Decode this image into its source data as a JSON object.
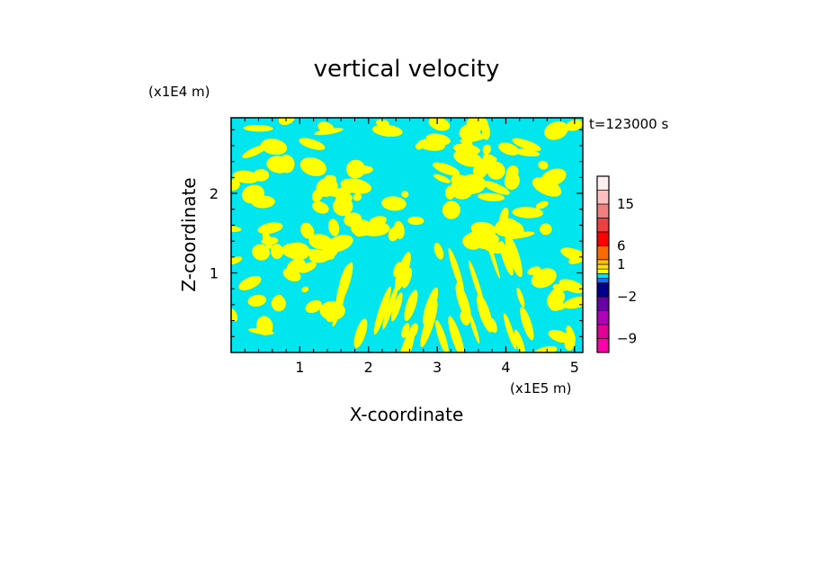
{
  "chart_data": {
    "type": "heatmap",
    "title": "vertical velocity",
    "xlabel": "X-coordinate",
    "ylabel": "Z-coordinate",
    "x_unit": "(x1E5 m)",
    "y_unit": "(x1E4 m)",
    "time_label": "t=123000 s",
    "xlim": [
      0,
      5.12
    ],
    "ylim": [
      0,
      2.95
    ],
    "xticks": [
      1,
      2,
      3,
      4,
      5
    ],
    "yticks": [
      1,
      2
    ],
    "field_colors": {
      "negative": "#00e5ee",
      "positive": "#ffff00"
    },
    "colorbar": {
      "levels": [
        -12,
        -9,
        -6,
        -4,
        -2,
        -1,
        -0.5,
        0,
        0.5,
        1,
        3,
        6,
        9,
        12,
        15,
        18,
        22
      ],
      "colors": [
        "#ff00a8",
        "#e00096",
        "#b000b8",
        "#6a00a8",
        "#00008b",
        "#1e6cff",
        "#00e5ee",
        "#ffff00",
        "#ffe000",
        "#ffc000",
        "#ff6a00",
        "#ff0000",
        "#ee4040",
        "#f08080",
        "#ffc0c0",
        "#fff0f0"
      ],
      "tick_labels": [
        "15",
        "6",
        "1",
        "−2",
        "−9"
      ],
      "tick_values": [
        15,
        6,
        1,
        -2,
        -9
      ]
    }
  }
}
